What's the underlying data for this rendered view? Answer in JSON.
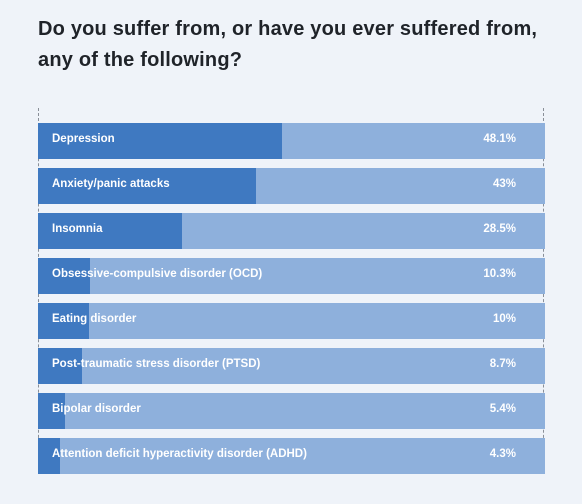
{
  "title": "Do you suffer from, or have you ever suffered from, any of the following?",
  "colors": {
    "background": "#eff3f9",
    "track": "#8eb0dc",
    "fill": "#3f79c1",
    "text": "#ffffff",
    "title": "#1f2329"
  },
  "chart_data": {
    "type": "bar",
    "orientation": "horizontal",
    "title": "Do you suffer from, or have you ever suffered from, any of the following?",
    "categories": [
      "Depression",
      "Anxiety/panic attacks",
      "Insomnia",
      "Obsessive-compulsive disorder (OCD)",
      "Eating disorder",
      "Post-traumatic stress disorder (PTSD)",
      "Bipolar disorder",
      "Attention deficit hyperactivity disorder (ADHD)"
    ],
    "values": [
      48.1,
      43,
      28.5,
      10.3,
      10,
      8.7,
      5.4,
      4.3
    ],
    "value_labels": [
      "48.1%",
      "43%",
      "28.5%",
      "10.3%",
      "10%",
      "8.7%",
      "5.4%",
      "4.3%"
    ],
    "xlim": [
      0,
      100
    ],
    "unit": "%",
    "grid": false,
    "legend": "none"
  }
}
